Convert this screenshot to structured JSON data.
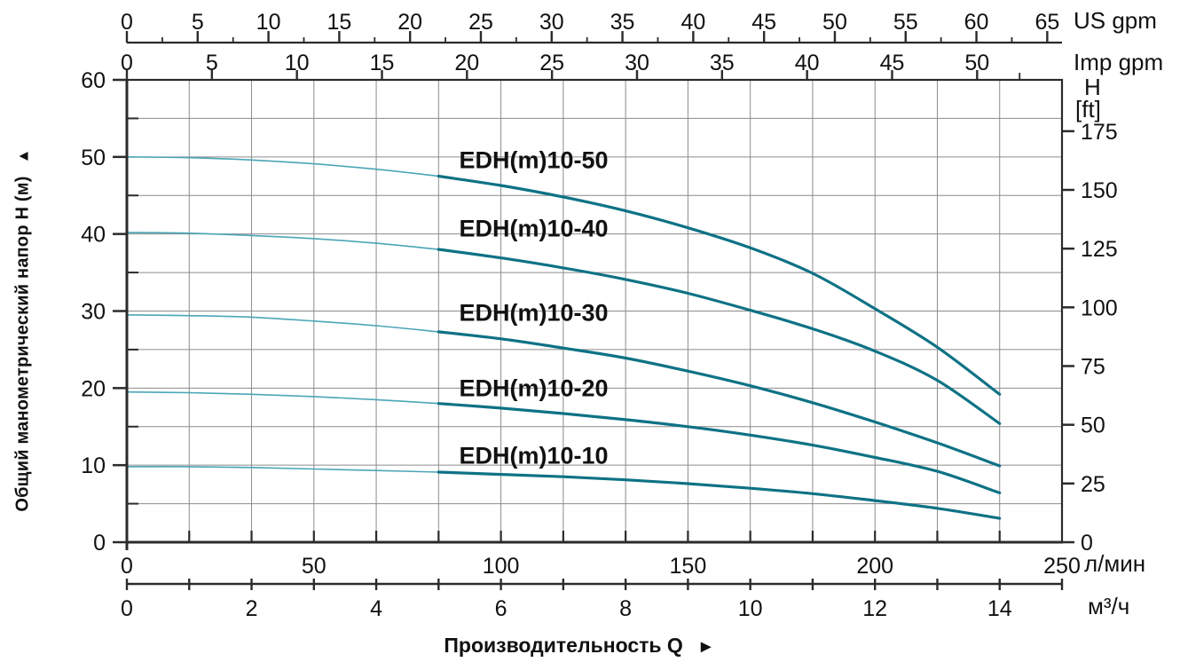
{
  "chart_data": {
    "type": "line",
    "title": "",
    "axes": {
      "us_gpm": {
        "unit": "US gpm",
        "ticks": [
          0,
          5,
          10,
          15,
          20,
          25,
          30,
          35,
          40,
          45,
          50,
          55,
          60,
          65
        ]
      },
      "imp_gpm": {
        "unit": "Imp gpm",
        "ticks": [
          0,
          5,
          10,
          15,
          20,
          25,
          30,
          35,
          40,
          45,
          50
        ]
      },
      "head_m": {
        "label": "Общий манометрический напор H (м)",
        "arrow": "▲",
        "ticks": [
          0,
          10,
          20,
          30,
          40,
          50,
          60
        ],
        "range": [
          0,
          60
        ],
        "minor_step": 5
      },
      "head_ft": {
        "unit_line1": "H",
        "unit_line2": "[ft]",
        "ticks": [
          0,
          25,
          50,
          75,
          100,
          125,
          150,
          175
        ]
      },
      "flow_lmin": {
        "unit": "л/мин",
        "ticks": [
          0,
          50,
          100,
          150,
          200,
          250
        ],
        "range": [
          0,
          250
        ]
      },
      "flow_m3h": {
        "unit": "м³/ч",
        "ticks": [
          0,
          2,
          4,
          6,
          8,
          10,
          12,
          14
        ],
        "range": [
          0,
          15
        ]
      },
      "flow_title": {
        "label": "Производительность Q",
        "arrow": "►"
      }
    },
    "grid": {
      "vertical_every_m3h": 1,
      "horizontal_every_m": 5,
      "shown": true
    },
    "bold_from_q_m3h": 5,
    "x_m3h": [
      0,
      1,
      2,
      3,
      4,
      5,
      6,
      7,
      8,
      9,
      10,
      11,
      12,
      13,
      14
    ],
    "series": [
      {
        "name": "EDH(m)10-50",
        "label_q": 5.33,
        "label_h": 49.65,
        "h_m": [
          50.0,
          49.9,
          49.6,
          49.1,
          48.4,
          47.5,
          46.3,
          44.8,
          43.0,
          40.8,
          38.2,
          34.9,
          30.3,
          25.3,
          19.2
        ]
      },
      {
        "name": "EDH(m)10-40",
        "label_q": 5.33,
        "label_h": 40.78,
        "h_m": [
          40.2,
          40.1,
          39.8,
          39.4,
          38.8,
          38.0,
          36.9,
          35.6,
          34.1,
          32.3,
          30.1,
          27.7,
          24.8,
          21.0,
          15.4
        ]
      },
      {
        "name": "EDH(m)10-30",
        "label_q": 5.33,
        "label_h": 29.84,
        "h_m": [
          29.5,
          29.4,
          29.2,
          28.7,
          28.1,
          27.3,
          26.4,
          25.2,
          23.9,
          22.2,
          20.3,
          18.1,
          15.6,
          12.9,
          9.9
        ]
      },
      {
        "name": "EDH(m)10-20",
        "label_q": 5.33,
        "label_h": 20.05,
        "h_m": [
          19.5,
          19.4,
          19.2,
          18.9,
          18.5,
          18.0,
          17.4,
          16.7,
          15.9,
          15.0,
          13.9,
          12.6,
          11.0,
          9.2,
          6.4
        ]
      },
      {
        "name": "EDH(m)10-10",
        "label_q": 5.33,
        "label_h": 11.29,
        "h_m": [
          9.8,
          9.8,
          9.7,
          9.5,
          9.3,
          9.1,
          8.8,
          8.5,
          8.1,
          7.6,
          7.0,
          6.3,
          5.4,
          4.4,
          3.1
        ]
      }
    ],
    "colors": {
      "curve_bold": "#0e7285",
      "curve_thin": "#4aa6b6",
      "grid": "#8c8c8c",
      "axis": "#2b2b2b",
      "text": "#111111"
    }
  }
}
